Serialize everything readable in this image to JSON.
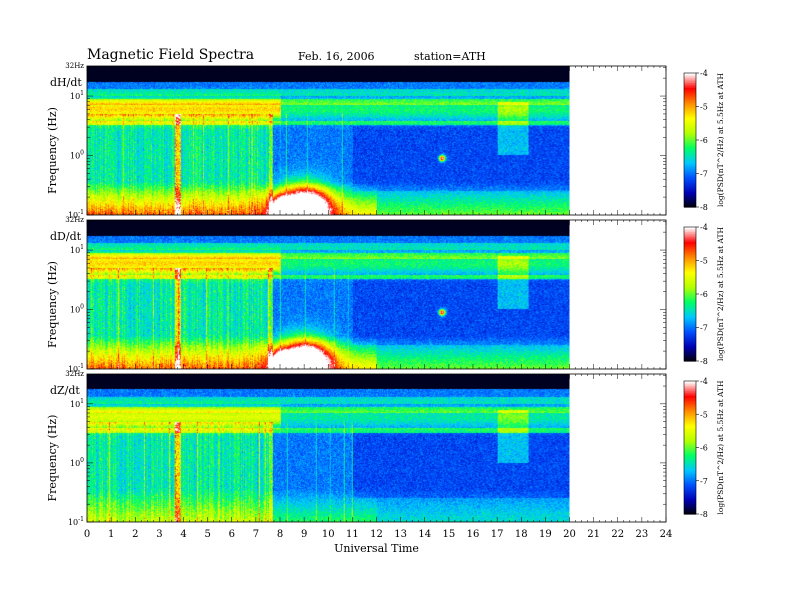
{
  "header": {
    "title": "Magnetic Field Spectra",
    "date": "Feb. 16, 2006",
    "station": "station=ATH"
  },
  "chart_data": {
    "type": "heatmap",
    "xlabel": "Universal Time",
    "xlim": [
      0,
      24
    ],
    "x_ticks": [
      "0",
      "1",
      "2",
      "3",
      "4",
      "5",
      "6",
      "7",
      "8",
      "9",
      "10",
      "11",
      "12",
      "13",
      "14",
      "15",
      "16",
      "17",
      "18",
      "19",
      "20",
      "21",
      "22",
      "23",
      "24"
    ],
    "data_end_hour": 20,
    "ylabel": "Frequency (Hz)",
    "ylim": [
      0.1,
      32
    ],
    "y_scale": "log",
    "y_top_label": "32Hz",
    "y_ticks": [
      {
        "label": "10",
        "exp": "1",
        "value": 10
      },
      {
        "label": "10",
        "exp": "0",
        "value": 1
      },
      {
        "label": "10",
        "exp": "-1",
        "value": 0.1
      }
    ],
    "panels": [
      {
        "name": "dH/dt"
      },
      {
        "name": "dD/dt"
      },
      {
        "name": "dZ/dt"
      }
    ],
    "colorbar": {
      "label": "log(PSD(nT^2/Hz) at 5.5Hz at ATH",
      "range": [
        -8,
        -4
      ],
      "ticks": [
        "-4",
        "-5",
        "-6",
        "-7",
        "-8"
      ],
      "colors": [
        "#000000",
        "#0000b4",
        "#0050ff",
        "#00c8ff",
        "#00ff64",
        "#b4ff00",
        "#ffff00",
        "#ff8c00",
        "#ff0000",
        "#ffffff"
      ]
    }
  }
}
